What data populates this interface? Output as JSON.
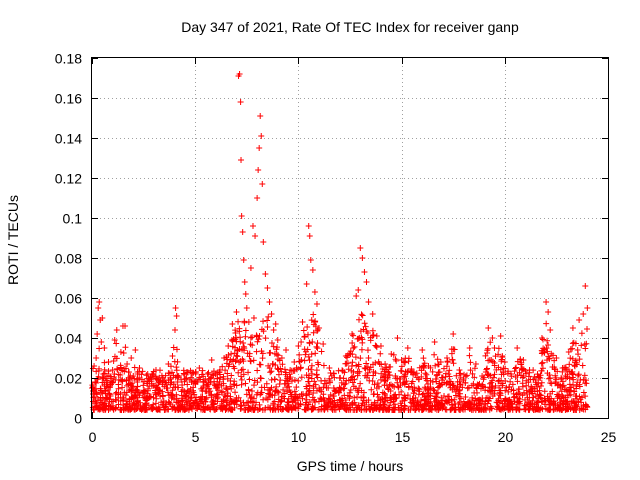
{
  "chart_data": {
    "type": "scatter",
    "title": "Day 347 of 2021, Rate Of TEC Index for receiver ganp",
    "xlabel": "GPS time / hours",
    "ylabel": "ROTI / TECUs",
    "xlim": [
      0,
      25
    ],
    "ylim": [
      0,
      0.18
    ],
    "xticks": [
      0,
      5,
      10,
      15,
      20,
      25
    ],
    "xtick_labels": [
      "0",
      "5",
      "10",
      "15",
      "20",
      "25"
    ],
    "yticks": [
      0,
      0.02,
      0.04,
      0.06,
      0.08,
      0.1,
      0.12,
      0.14,
      0.16,
      0.18
    ],
    "ytick_labels": [
      "0",
      "0.02",
      "0.04",
      "0.06",
      "0.08",
      "0.1",
      "0.12",
      "0.14",
      "0.16",
      "0.18"
    ],
    "grid": true,
    "marker": "+",
    "color": "#ff0000",
    "series": [
      {
        "name": "ROTI",
        "points": [
          [
            0.05,
            0.012
          ],
          [
            0.1,
            0.026
          ],
          [
            0.15,
            0.018
          ],
          [
            0.2,
            0.03
          ],
          [
            0.25,
            0.042
          ],
          [
            0.3,
            0.055
          ],
          [
            0.35,
            0.058
          ],
          [
            0.4,
            0.049
          ],
          [
            0.45,
            0.038
          ],
          [
            0.5,
            0.05
          ],
          [
            0.55,
            0.022
          ],
          [
            0.6,
            0.035
          ],
          [
            0.7,
            0.016
          ],
          [
            0.8,
            0.028
          ],
          [
            0.9,
            0.011
          ],
          [
            1.0,
            0.024
          ],
          [
            1.1,
            0.039
          ],
          [
            1.2,
            0.044
          ],
          [
            1.3,
            0.019
          ],
          [
            1.4,
            0.033
          ],
          [
            1.5,
            0.046
          ],
          [
            1.6,
            0.046
          ],
          [
            1.7,
            0.027
          ],
          [
            1.8,
            0.014
          ],
          [
            1.9,
            0.03
          ],
          [
            2.0,
            0.021
          ],
          [
            2.1,
            0.034
          ],
          [
            2.2,
            0.018
          ],
          [
            2.3,
            0.025
          ],
          [
            2.5,
            0.013
          ],
          [
            2.7,
            0.022
          ],
          [
            2.9,
            0.016
          ],
          [
            3.1,
            0.024
          ],
          [
            3.3,
            0.011
          ],
          [
            3.5,
            0.019
          ],
          [
            3.7,
            0.027
          ],
          [
            3.9,
            0.031
          ],
          [
            4.05,
            0.055
          ],
          [
            4.1,
            0.051
          ],
          [
            4.2,
            0.021
          ],
          [
            4.4,
            0.014
          ],
          [
            4.6,
            0.023
          ],
          [
            4.8,
            0.012
          ],
          [
            5.0,
            0.018
          ],
          [
            5.2,
            0.025
          ],
          [
            5.4,
            0.016
          ],
          [
            5.6,
            0.022
          ],
          [
            5.8,
            0.029
          ],
          [
            6.0,
            0.015
          ],
          [
            6.2,
            0.024
          ],
          [
            6.4,
            0.03
          ],
          [
            6.6,
            0.036
          ],
          [
            6.8,
            0.047
          ],
          [
            7.0,
            0.053
          ],
          [
            7.1,
            0.171
          ],
          [
            7.15,
            0.172
          ],
          [
            7.2,
            0.158
          ],
          [
            7.22,
            0.129
          ],
          [
            7.25,
            0.101
          ],
          [
            7.3,
            0.093
          ],
          [
            7.35,
            0.079
          ],
          [
            7.4,
            0.068
          ],
          [
            7.45,
            0.062
          ],
          [
            7.5,
            0.055
          ],
          [
            7.6,
            0.048
          ],
          [
            7.7,
            0.075
          ],
          [
            7.8,
            0.096
          ],
          [
            7.9,
            0.091
          ],
          [
            8.0,
            0.11
          ],
          [
            8.05,
            0.124
          ],
          [
            8.1,
            0.135
          ],
          [
            8.15,
            0.151
          ],
          [
            8.2,
            0.141
          ],
          [
            8.25,
            0.117
          ],
          [
            8.3,
            0.088
          ],
          [
            8.4,
            0.072
          ],
          [
            8.5,
            0.065
          ],
          [
            8.6,
            0.058
          ],
          [
            8.7,
            0.052
          ],
          [
            8.8,
            0.044
          ],
          [
            8.9,
            0.047
          ],
          [
            9.0,
            0.039
          ],
          [
            9.2,
            0.03
          ],
          [
            9.4,
            0.034
          ],
          [
            9.6,
            0.024
          ],
          [
            9.8,
            0.028
          ],
          [
            10.0,
            0.036
          ],
          [
            10.2,
            0.048
          ],
          [
            10.4,
            0.067
          ],
          [
            10.5,
            0.096
          ],
          [
            10.55,
            0.091
          ],
          [
            10.6,
            0.079
          ],
          [
            10.7,
            0.074
          ],
          [
            10.8,
            0.063
          ],
          [
            10.9,
            0.057
          ],
          [
            11.0,
            0.045
          ],
          [
            11.2,
            0.037
          ],
          [
            11.5,
            0.025
          ],
          [
            12.0,
            0.02
          ],
          [
            12.3,
            0.031
          ],
          [
            12.6,
            0.042
          ],
          [
            12.8,
            0.061
          ],
          [
            12.9,
            0.064
          ],
          [
            13.0,
            0.085
          ],
          [
            13.1,
            0.08
          ],
          [
            13.2,
            0.073
          ],
          [
            13.3,
            0.068
          ],
          [
            13.4,
            0.058
          ],
          [
            13.6,
            0.052
          ],
          [
            13.8,
            0.041
          ],
          [
            14.0,
            0.036
          ],
          [
            14.2,
            0.027
          ],
          [
            14.5,
            0.032
          ],
          [
            14.8,
            0.04
          ],
          [
            15.0,
            0.029
          ],
          [
            15.3,
            0.035
          ],
          [
            15.6,
            0.023
          ],
          [
            16.0,
            0.034
          ],
          [
            16.3,
            0.026
          ],
          [
            16.6,
            0.038
          ],
          [
            16.9,
            0.028
          ],
          [
            17.2,
            0.03
          ],
          [
            17.5,
            0.042
          ],
          [
            17.8,
            0.024
          ],
          [
            18.0,
            0.019
          ],
          [
            18.3,
            0.035
          ],
          [
            18.6,
            0.027
          ],
          [
            18.9,
            0.021
          ],
          [
            19.2,
            0.045
          ],
          [
            19.4,
            0.04
          ],
          [
            19.5,
            0.035
          ],
          [
            19.8,
            0.041
          ],
          [
            20.0,
            0.028
          ],
          [
            20.3,
            0.022
          ],
          [
            20.6,
            0.035
          ],
          [
            20.9,
            0.029
          ],
          [
            21.2,
            0.024
          ],
          [
            21.5,
            0.019
          ],
          [
            21.8,
            0.04
          ],
          [
            22.0,
            0.058
          ],
          [
            22.1,
            0.053
          ],
          [
            22.2,
            0.044
          ],
          [
            22.5,
            0.03
          ],
          [
            22.8,
            0.025
          ],
          [
            23.1,
            0.033
          ],
          [
            23.3,
            0.045
          ],
          [
            23.6,
            0.049
          ],
          [
            23.8,
            0.052
          ],
          [
            23.9,
            0.066
          ],
          [
            24.0,
            0.055
          ]
        ]
      }
    ]
  }
}
